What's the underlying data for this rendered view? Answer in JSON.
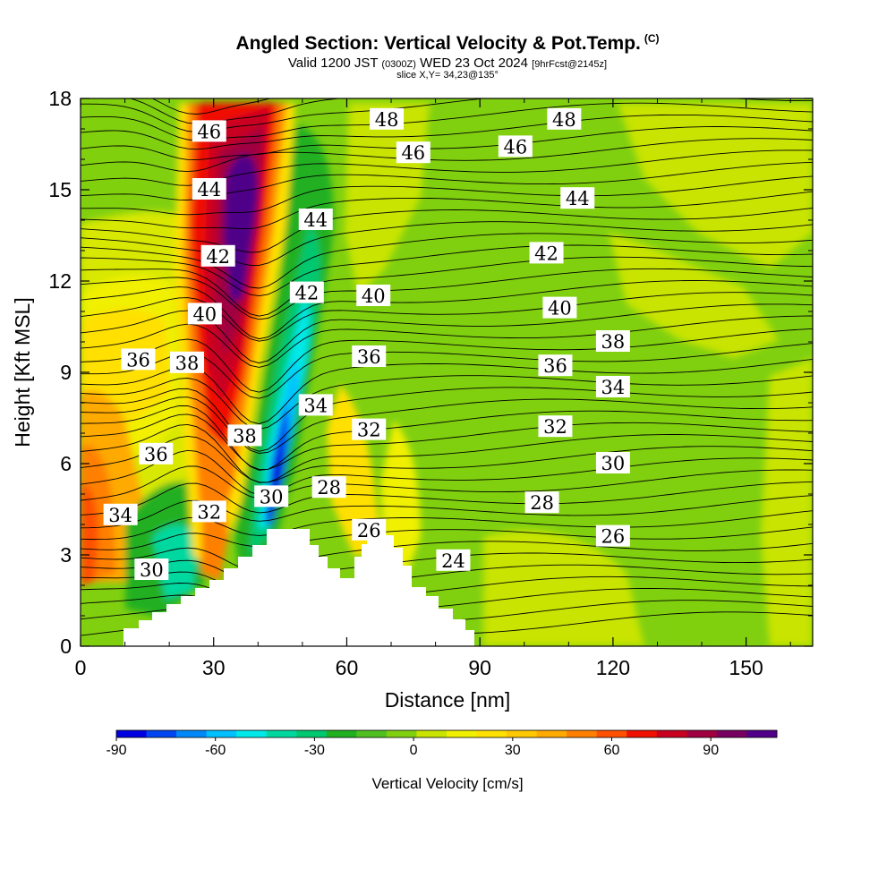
{
  "chart_data": {
    "type": "heatmap",
    "title": "Angled Section: Vertical Velocity & Pot.Temp.",
    "title_mark": "(C)",
    "subtitle": {
      "valid": "Valid 1200 JST",
      "utc": "(0300Z)",
      "date": "WED 23 Oct 2024",
      "fcst": "[9hrFcst@2145z]"
    },
    "slice": "slice X,Y= 34,23@135°",
    "xlabel": "Distance [nm]",
    "ylabel": "Height [Kft MSL]",
    "xlim": [
      0,
      165
    ],
    "ylim": [
      0,
      18
    ],
    "x_ticks": [
      "0",
      "30",
      "60",
      "90",
      "120",
      "150"
    ],
    "y_ticks": [
      "0",
      "3",
      "6",
      "9",
      "12",
      "15",
      "18"
    ],
    "colorbar": {
      "label": "Vertical Velocity [cm/s]",
      "ticks": [
        "-90",
        "-60",
        "-30",
        "0",
        "30",
        "60",
        "90"
      ],
      "range": [
        -90,
        110
      ],
      "colors": [
        "#0000e0",
        "#0046f0",
        "#0088f8",
        "#00c0ff",
        "#00e8e8",
        "#00d8a0",
        "#00c870",
        "#20b020",
        "#50c020",
        "#80d010",
        "#c8e400",
        "#f0f000",
        "#ffe000",
        "#ffc800",
        "#ffaa00",
        "#ff8000",
        "#ff5000",
        "#f01000",
        "#c80020",
        "#a00040",
        "#780060",
        "#500088"
      ]
    },
    "theta_labels": [
      {
        "text": "48",
        "x": 69,
        "y": 17.3
      },
      {
        "text": "48",
        "x": 109,
        "y": 17.3
      },
      {
        "text": "46",
        "x": 29,
        "y": 16.9
      },
      {
        "text": "46",
        "x": 75,
        "y": 16.2
      },
      {
        "text": "46",
        "x": 98,
        "y": 16.4
      },
      {
        "text": "44",
        "x": 29,
        "y": 15.0
      },
      {
        "text": "44",
        "x": 53,
        "y": 14.0
      },
      {
        "text": "44",
        "x": 112,
        "y": 14.7
      },
      {
        "text": "42",
        "x": 31,
        "y": 12.8
      },
      {
        "text": "42",
        "x": 105,
        "y": 12.9
      },
      {
        "text": "42",
        "x": 51,
        "y": 11.6
      },
      {
        "text": "40",
        "x": 66,
        "y": 11.5
      },
      {
        "text": "40",
        "x": 108,
        "y": 11.1
      },
      {
        "text": "40",
        "x": 28,
        "y": 10.9
      },
      {
        "text": "38",
        "x": 120,
        "y": 10.0
      },
      {
        "text": "38",
        "x": 24,
        "y": 9.3
      },
      {
        "text": "38",
        "x": 37,
        "y": 6.9
      },
      {
        "text": "36",
        "x": 13,
        "y": 9.4
      },
      {
        "text": "36",
        "x": 65,
        "y": 9.5
      },
      {
        "text": "36",
        "x": 107,
        "y": 9.2
      },
      {
        "text": "36",
        "x": 17,
        "y": 6.3
      },
      {
        "text": "34",
        "x": 53,
        "y": 7.9
      },
      {
        "text": "34",
        "x": 120,
        "y": 8.5
      },
      {
        "text": "34",
        "x": 9,
        "y": 4.3
      },
      {
        "text": "32",
        "x": 65,
        "y": 7.1
      },
      {
        "text": "32",
        "x": 107,
        "y": 7.2
      },
      {
        "text": "32",
        "x": 29,
        "y": 4.4
      },
      {
        "text": "30",
        "x": 120,
        "y": 6.0
      },
      {
        "text": "30",
        "x": 43,
        "y": 4.9
      },
      {
        "text": "30",
        "x": 16,
        "y": 2.5
      },
      {
        "text": "28",
        "x": 56,
        "y": 5.2
      },
      {
        "text": "28",
        "x": 104,
        "y": 4.7
      },
      {
        "text": "26",
        "x": 65,
        "y": 3.8
      },
      {
        "text": "26",
        "x": 120,
        "y": 3.6
      },
      {
        "text": "24",
        "x": 84,
        "y": 2.8
      }
    ]
  }
}
